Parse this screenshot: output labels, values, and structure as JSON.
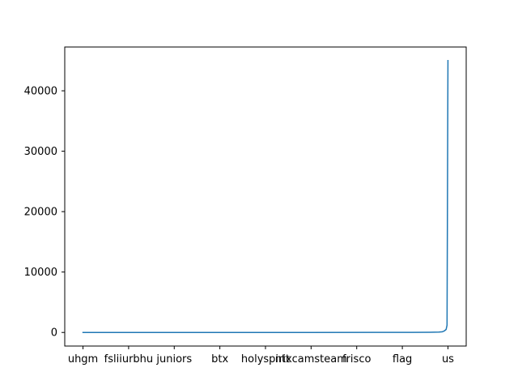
{
  "chart_data": {
    "type": "line",
    "title": "",
    "xlabel": "",
    "ylabel": "",
    "x_tick_labels": [
      "uhgm",
      "fsliiurbhu",
      "juniors",
      "btx",
      "holyspirit",
      "ntxcamsteam",
      "frisco",
      "flag",
      "us"
    ],
    "y_tick_labels": [
      "0",
      "10000",
      "20000",
      "30000",
      "40000"
    ],
    "y_ticks": [
      0,
      10000,
      20000,
      30000,
      40000
    ],
    "ylim": [
      -2250,
      47250
    ],
    "x_count": 201,
    "xlim_index": [
      -10,
      210
    ],
    "x_tick_index": [
      0,
      25,
      50,
      75,
      100,
      125,
      150,
      175,
      200
    ],
    "series": [
      {
        "color": "#1f77b4",
        "points": [
          [
            0,
            1
          ],
          [
            60,
            2
          ],
          [
            120,
            4
          ],
          [
            160,
            8
          ],
          [
            180,
            15
          ],
          [
            190,
            30
          ],
          [
            195,
            60
          ],
          [
            197,
            120
          ],
          [
            198,
            250
          ],
          [
            199,
            500
          ],
          [
            199.5,
            1200
          ],
          [
            200,
            45000
          ]
        ]
      }
    ],
    "grid": false,
    "legend": "none"
  }
}
